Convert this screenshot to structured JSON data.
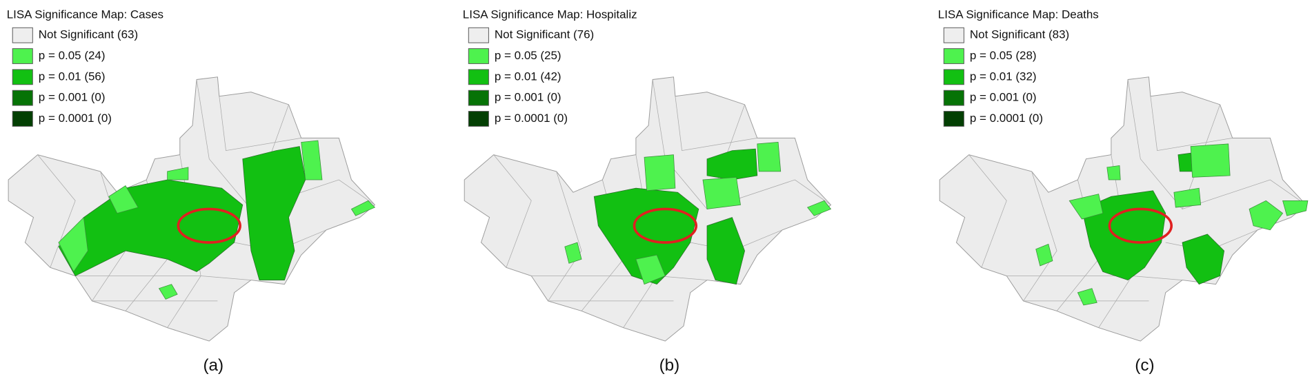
{
  "panels": [
    {
      "title": "LISA Significance Map:  Cases",
      "caption": "(a)",
      "legend": [
        {
          "label": "Not Significant (63)",
          "color": "#eeeeee"
        },
        {
          "label": "p = 0.05 (24)",
          "color": "#4ef24e"
        },
        {
          "label": "p = 0.01 (56)",
          "color": "#12c012"
        },
        {
          "label": "p = 0.001 (0)",
          "color": "#067306"
        },
        {
          "label": "p = 0.0001 (0)",
          "color": "#033f03"
        }
      ]
    },
    {
      "title": "LISA Significance Map:  Hospitaliz",
      "caption": "(b)",
      "legend": [
        {
          "label": "Not Significant (76)",
          "color": "#eeeeee"
        },
        {
          "label": "p = 0.05 (25)",
          "color": "#4ef24e"
        },
        {
          "label": "p = 0.01 (42)",
          "color": "#12c012"
        },
        {
          "label": "p = 0.001 (0)",
          "color": "#067306"
        },
        {
          "label": "p = 0.0001 (0)",
          "color": "#033f03"
        }
      ]
    },
    {
      "title": "LISA Significance Map:  Deaths",
      "caption": "(c)",
      "legend": [
        {
          "label": "Not Significant (83)",
          "color": "#eeeeee"
        },
        {
          "label": "p = 0.05 (28)",
          "color": "#4ef24e"
        },
        {
          "label": "p = 0.01 (32)",
          "color": "#12c012"
        },
        {
          "label": "p = 0.001 (0)",
          "color": "#067306"
        },
        {
          "label": "p = 0.0001 (0)",
          "color": "#033f03"
        }
      ]
    }
  ]
}
